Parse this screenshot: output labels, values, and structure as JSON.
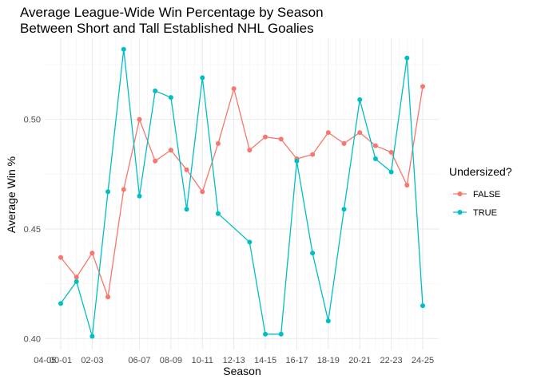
{
  "chart_data": {
    "type": "line",
    "title": [
      "Average League-Wide Win Percentage by Season",
      "Between Short and Tall Established NHL Goalies"
    ],
    "xlabel": "Season",
    "ylabel": "Average Win %",
    "x_ticks": [
      "00-01",
      "02-03",
      "04-05",
      "06-07",
      "08-09",
      "10-11",
      "12-13",
      "14-15",
      "16-17",
      "18-19",
      "20-21",
      "22-23",
      "24-25"
    ],
    "ylim": [
      0.395,
      0.537
    ],
    "y_ticks": [
      0.4,
      0.45,
      0.5
    ],
    "y_tick_labels": [
      "0.40",
      "0.45",
      "0.50"
    ],
    "grid": true,
    "legend": {
      "title": "Undersized?",
      "position": "right"
    },
    "seasons": [
      "00-01",
      "01-02",
      "02-03",
      "03-04",
      "05-06",
      "06-07",
      "07-08",
      "08-09",
      "09-10",
      "10-11",
      "11-12",
      "12-13",
      "13-14",
      "14-15",
      "15-16",
      "16-17",
      "17-18",
      "18-19",
      "19-20",
      "20-21",
      "21-22",
      "22-23",
      "23-24",
      "24-25"
    ],
    "series": [
      {
        "name": "FALSE",
        "color": "#F8766D",
        "x": [
          "00-01",
          "01-02",
          "02-03",
          "03-04",
          "05-06",
          "06-07",
          "07-08",
          "08-09",
          "09-10",
          "10-11",
          "11-12",
          "12-13",
          "13-14",
          "14-15",
          "15-16",
          "16-17",
          "17-18",
          "18-19",
          "19-20",
          "20-21",
          "21-22",
          "22-23",
          "23-24",
          "24-25"
        ],
        "values": [
          0.437,
          0.428,
          0.439,
          0.419,
          0.468,
          0.5,
          0.481,
          0.486,
          0.477,
          0.467,
          0.489,
          0.514,
          0.486,
          0.492,
          0.491,
          0.482,
          0.484,
          0.494,
          0.489,
          0.494,
          0.488,
          0.485,
          0.47,
          0.515
        ]
      },
      {
        "name": "TRUE",
        "color": "#00BFC4",
        "x": [
          "00-01",
          "01-02",
          "02-03",
          "03-04",
          "05-06",
          "06-07",
          "07-08",
          "08-09",
          "09-10",
          "10-11",
          "11-12",
          "13-14",
          "14-15",
          "15-16",
          "16-17",
          "17-18",
          "18-19",
          "19-20",
          "20-21",
          "21-22",
          "22-23",
          "23-24",
          "24-25"
        ],
        "values": [
          0.416,
          0.426,
          0.401,
          0.467,
          0.532,
          0.465,
          0.513,
          0.51,
          0.459,
          0.519,
          0.457,
          0.444,
          0.402,
          0.402,
          0.481,
          0.439,
          0.408,
          0.459,
          0.509,
          0.482,
          0.476,
          0.528,
          0.415
        ]
      }
    ]
  }
}
